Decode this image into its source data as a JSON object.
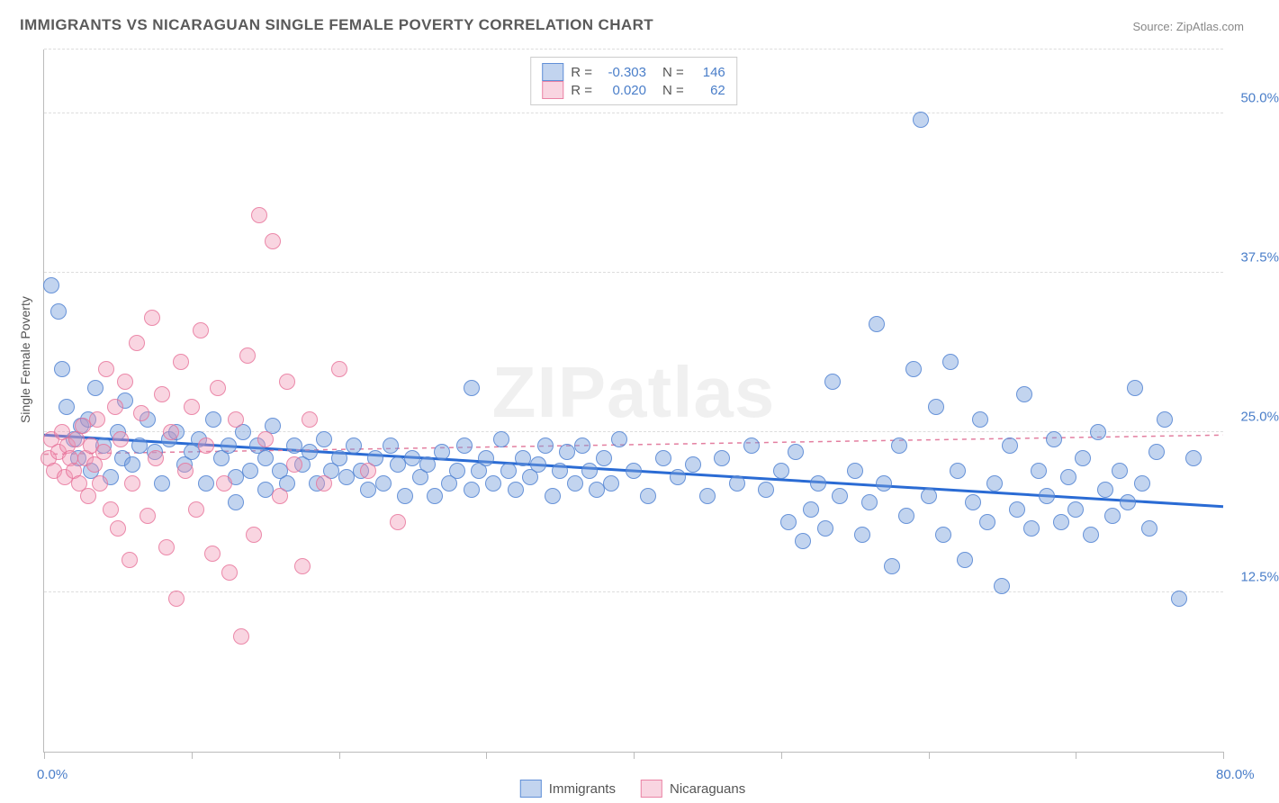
{
  "title": "IMMIGRANTS VS NICARAGUAN SINGLE FEMALE POVERTY CORRELATION CHART",
  "source": "Source: ZipAtlas.com",
  "watermark": "ZIPatlas",
  "ylabel": "Single Female Poverty",
  "chart": {
    "type": "scatter",
    "xlim": [
      0,
      80
    ],
    "ylim": [
      0,
      55
    ],
    "x_ticks": [
      0,
      10,
      20,
      30,
      40,
      50,
      60,
      70,
      80
    ],
    "x_tick_labels": {
      "0": "0.0%",
      "80": "80.0%"
    },
    "y_grid": [
      12.5,
      25.0,
      37.5,
      50.0,
      55.0
    ],
    "y_tick_labels": {
      "12.5": "12.5%",
      "25.0": "25.0%",
      "37.5": "37.5%",
      "50.0": "50.0%"
    },
    "background_color": "#ffffff",
    "grid_color": "#dddddd",
    "axis_color": "#bbbbbb",
    "tick_label_color": "#4a7ec9",
    "marker_radius": 8,
    "series": [
      {
        "name": "Immigrants",
        "fill_color": "rgba(120,160,220,0.45)",
        "stroke_color": "rgba(80,130,210,0.8)",
        "R": -0.303,
        "N": 146,
        "trend": {
          "y_at_x0": 24.8,
          "y_at_x80": 19.2,
          "stroke": "#2a6bd4",
          "width": 3,
          "dash": "none"
        },
        "points": [
          [
            0.5,
            36.5
          ],
          [
            1,
            34.5
          ],
          [
            1.2,
            30
          ],
          [
            1.5,
            27
          ],
          [
            2,
            24.5
          ],
          [
            2.3,
            23
          ],
          [
            2.5,
            25.5
          ],
          [
            3,
            26
          ],
          [
            3.2,
            22
          ],
          [
            3.5,
            28.5
          ],
          [
            4,
            24
          ],
          [
            4.5,
            21.5
          ],
          [
            5,
            25
          ],
          [
            5.3,
            23
          ],
          [
            5.5,
            27.5
          ],
          [
            6,
            22.5
          ],
          [
            6.5,
            24
          ],
          [
            7,
            26
          ],
          [
            7.5,
            23.5
          ],
          [
            8,
            21
          ],
          [
            8.5,
            24.5
          ],
          [
            9,
            25
          ],
          [
            9.5,
            22.5
          ],
          [
            10,
            23.5
          ],
          [
            10.5,
            24.5
          ],
          [
            11,
            21
          ],
          [
            11.5,
            26
          ],
          [
            12,
            23
          ],
          [
            12.5,
            24
          ],
          [
            13,
            21.5
          ],
          [
            13,
            19.5
          ],
          [
            13.5,
            25
          ],
          [
            14,
            22
          ],
          [
            14.5,
            24
          ],
          [
            15,
            20.5
          ],
          [
            15,
            23
          ],
          [
            15.5,
            25.5
          ],
          [
            16,
            22
          ],
          [
            16.5,
            21
          ],
          [
            17,
            24
          ],
          [
            17.5,
            22.5
          ],
          [
            18,
            23.5
          ],
          [
            18.5,
            21
          ],
          [
            19,
            24.5
          ],
          [
            19.5,
            22
          ],
          [
            20,
            23
          ],
          [
            20.5,
            21.5
          ],
          [
            21,
            24
          ],
          [
            21.5,
            22
          ],
          [
            22,
            20.5
          ],
          [
            22.5,
            23
          ],
          [
            23,
            21
          ],
          [
            23.5,
            24
          ],
          [
            24,
            22.5
          ],
          [
            24.5,
            20
          ],
          [
            25,
            23
          ],
          [
            25.5,
            21.5
          ],
          [
            26,
            22.5
          ],
          [
            26.5,
            20
          ],
          [
            27,
            23.5
          ],
          [
            27.5,
            21
          ],
          [
            28,
            22
          ],
          [
            28.5,
            24
          ],
          [
            29,
            20.5
          ],
          [
            29,
            28.5
          ],
          [
            29.5,
            22
          ],
          [
            30,
            23
          ],
          [
            30.5,
            21
          ],
          [
            31,
            24.5
          ],
          [
            31.5,
            22
          ],
          [
            32,
            20.5
          ],
          [
            32.5,
            23
          ],
          [
            33,
            21.5
          ],
          [
            33.5,
            22.5
          ],
          [
            34,
            24
          ],
          [
            34.5,
            20
          ],
          [
            35,
            22
          ],
          [
            35.5,
            23.5
          ],
          [
            36,
            21
          ],
          [
            36.5,
            24
          ],
          [
            37,
            22
          ],
          [
            37.5,
            20.5
          ],
          [
            38,
            23
          ],
          [
            38.5,
            21
          ],
          [
            39,
            24.5
          ],
          [
            40,
            22
          ],
          [
            41,
            20
          ],
          [
            42,
            23
          ],
          [
            43,
            21.5
          ],
          [
            44,
            22.5
          ],
          [
            45,
            20
          ],
          [
            46,
            23
          ],
          [
            47,
            21
          ],
          [
            48,
            24
          ],
          [
            49,
            20.5
          ],
          [
            50,
            22
          ],
          [
            50.5,
            18
          ],
          [
            51,
            23.5
          ],
          [
            51.5,
            16.5
          ],
          [
            52,
            19
          ],
          [
            52.5,
            21
          ],
          [
            53,
            17.5
          ],
          [
            53.5,
            29
          ],
          [
            54,
            20
          ],
          [
            55,
            22
          ],
          [
            55.5,
            17
          ],
          [
            56,
            19.5
          ],
          [
            56.5,
            33.5
          ],
          [
            57,
            21
          ],
          [
            57.5,
            14.5
          ],
          [
            58,
            24
          ],
          [
            58.5,
            18.5
          ],
          [
            59,
            30
          ],
          [
            59.5,
            49.5
          ],
          [
            60,
            20
          ],
          [
            60.5,
            27
          ],
          [
            61,
            17
          ],
          [
            61.5,
            30.5
          ],
          [
            62,
            22
          ],
          [
            62.5,
            15
          ],
          [
            63,
            19.5
          ],
          [
            63.5,
            26
          ],
          [
            64,
            18
          ],
          [
            64.5,
            21
          ],
          [
            65,
            13
          ],
          [
            65.5,
            24
          ],
          [
            66,
            19
          ],
          [
            66.5,
            28
          ],
          [
            67,
            17.5
          ],
          [
            67.5,
            22
          ],
          [
            68,
            20
          ],
          [
            68.5,
            24.5
          ],
          [
            69,
            18
          ],
          [
            69.5,
            21.5
          ],
          [
            70,
            19
          ],
          [
            70.5,
            23
          ],
          [
            71,
            17
          ],
          [
            71.5,
            25
          ],
          [
            72,
            20.5
          ],
          [
            72.5,
            18.5
          ],
          [
            73,
            22
          ],
          [
            73.5,
            19.5
          ],
          [
            74,
            28.5
          ],
          [
            74.5,
            21
          ],
          [
            75,
            17.5
          ],
          [
            75.5,
            23.5
          ],
          [
            76,
            26
          ],
          [
            77,
            12
          ],
          [
            78,
            23
          ]
        ]
      },
      {
        "name": "Nicaraguans",
        "fill_color": "rgba(240,150,180,0.40)",
        "stroke_color": "rgba(230,110,150,0.75)",
        "R": 0.02,
        "N": 62,
        "trend": {
          "y_at_x0": 23.3,
          "y_at_x80": 24.8,
          "stroke": "#e37fa0",
          "width": 1.5,
          "dash": "5,5"
        },
        "points": [
          [
            0.3,
            23
          ],
          [
            0.5,
            24.5
          ],
          [
            0.7,
            22
          ],
          [
            1,
            23.5
          ],
          [
            1.2,
            25
          ],
          [
            1.4,
            21.5
          ],
          [
            1.6,
            24
          ],
          [
            1.8,
            23
          ],
          [
            2,
            22
          ],
          [
            2.2,
            24.5
          ],
          [
            2.4,
            21
          ],
          [
            2.6,
            25.5
          ],
          [
            2.8,
            23
          ],
          [
            3,
            20
          ],
          [
            3.2,
            24
          ],
          [
            3.4,
            22.5
          ],
          [
            3.6,
            26
          ],
          [
            3.8,
            21
          ],
          [
            4,
            23.5
          ],
          [
            4.2,
            30
          ],
          [
            4.5,
            19
          ],
          [
            4.8,
            27
          ],
          [
            5,
            17.5
          ],
          [
            5.2,
            24.5
          ],
          [
            5.5,
            29
          ],
          [
            5.8,
            15
          ],
          [
            6,
            21
          ],
          [
            6.3,
            32
          ],
          [
            6.6,
            26.5
          ],
          [
            7,
            18.5
          ],
          [
            7.3,
            34
          ],
          [
            7.6,
            23
          ],
          [
            8,
            28
          ],
          [
            8.3,
            16
          ],
          [
            8.6,
            25
          ],
          [
            9,
            12
          ],
          [
            9.3,
            30.5
          ],
          [
            9.6,
            22
          ],
          [
            10,
            27
          ],
          [
            10.3,
            19
          ],
          [
            10.6,
            33
          ],
          [
            11,
            24
          ],
          [
            11.4,
            15.5
          ],
          [
            11.8,
            28.5
          ],
          [
            12.2,
            21
          ],
          [
            12.6,
            14
          ],
          [
            13,
            26
          ],
          [
            13.4,
            9
          ],
          [
            13.8,
            31
          ],
          [
            14.2,
            17
          ],
          [
            14.6,
            42
          ],
          [
            15,
            24.5
          ],
          [
            15.5,
            40
          ],
          [
            16,
            20
          ],
          [
            16.5,
            29
          ],
          [
            17,
            22.5
          ],
          [
            17.5,
            14.5
          ],
          [
            18,
            26
          ],
          [
            19,
            21
          ],
          [
            20,
            30
          ],
          [
            22,
            22
          ],
          [
            24,
            18
          ]
        ]
      }
    ]
  },
  "legend_top": {
    "rows": [
      {
        "swatch": "sw-blue",
        "r_label": "R =",
        "r_val": "-0.303",
        "n_label": "N =",
        "n_val": "146"
      },
      {
        "swatch": "sw-pink",
        "r_label": "R =",
        "r_val": "0.020",
        "n_label": "N =",
        "n_val": "62"
      }
    ]
  },
  "legend_bottom": [
    {
      "swatch": "sw-blue",
      "label": "Immigrants"
    },
    {
      "swatch": "sw-pink",
      "label": "Nicaraguans"
    }
  ]
}
